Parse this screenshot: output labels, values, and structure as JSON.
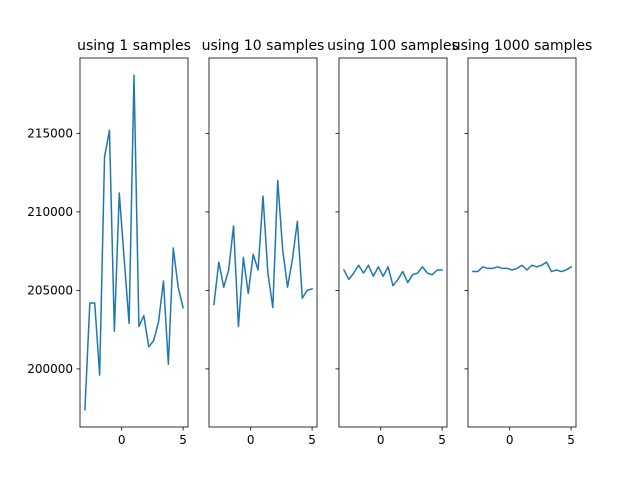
{
  "chart_data": [
    {
      "type": "line",
      "title": "using 1 samples",
      "xlim": [
        -3.4,
        5.4
      ],
      "ylim": [
        196300,
        219800
      ],
      "xticks": [
        "0",
        "5"
      ],
      "yticks": [
        "200000",
        "205000",
        "210000",
        "215000"
      ],
      "show_yticklabels": true,
      "line_color": "#1f77b4",
      "x": [
        -3.0,
        -2.6,
        -2.2,
        -1.8,
        -1.4,
        -1.0,
        -0.6,
        -0.2,
        0.2,
        0.6,
        1.0,
        1.4,
        1.8,
        2.2,
        2.6,
        3.0,
        3.4,
        3.8,
        4.2,
        4.6,
        5.0
      ],
      "values": [
        197400,
        204200,
        204200,
        199600,
        213500,
        215200,
        202400,
        211200,
        207000,
        202900,
        218700,
        202700,
        203400,
        201400,
        201800,
        203000,
        205600,
        200300,
        207700,
        205200,
        203900
      ]
    },
    {
      "type": "line",
      "title": "using 10 samples",
      "xlim": [
        -3.4,
        5.4
      ],
      "ylim": [
        196300,
        219800
      ],
      "xticks": [
        "0",
        "5"
      ],
      "yticks": [
        "200000",
        "205000",
        "210000",
        "215000"
      ],
      "show_yticklabels": false,
      "line_color": "#1f77b4",
      "x": [
        -3.0,
        -2.6,
        -2.2,
        -1.8,
        -1.4,
        -1.0,
        -0.6,
        -0.2,
        0.2,
        0.6,
        1.0,
        1.4,
        1.8,
        2.2,
        2.6,
        3.0,
        3.4,
        3.8,
        4.2,
        4.6,
        5.0
      ],
      "values": [
        204100,
        206800,
        205200,
        206300,
        209100,
        202700,
        207100,
        204800,
        207300,
        206300,
        211000,
        206100,
        203900,
        212000,
        207600,
        205200,
        207000,
        209400,
        204500,
        205000,
        205100
      ]
    },
    {
      "type": "line",
      "title": "using 100 samples",
      "xlim": [
        -3.4,
        5.4
      ],
      "ylim": [
        196300,
        219800
      ],
      "xticks": [
        "0",
        "5"
      ],
      "yticks": [
        "200000",
        "205000",
        "210000",
        "215000"
      ],
      "show_yticklabels": false,
      "line_color": "#1f77b4",
      "x": [
        -3.0,
        -2.6,
        -2.2,
        -1.8,
        -1.4,
        -1.0,
        -0.6,
        -0.2,
        0.2,
        0.6,
        1.0,
        1.4,
        1.8,
        2.2,
        2.6,
        3.0,
        3.4,
        3.8,
        4.2,
        4.6,
        5.0
      ],
      "values": [
        206300,
        205700,
        206100,
        206600,
        206100,
        206600,
        205900,
        206500,
        205900,
        206500,
        205300,
        205700,
        206200,
        205500,
        206000,
        206100,
        206500,
        206100,
        206000,
        206300,
        206300
      ]
    },
    {
      "type": "line",
      "title": "using 1000 samples",
      "xlim": [
        -3.4,
        5.4
      ],
      "ylim": [
        196300,
        219800
      ],
      "xticks": [
        "0",
        "5"
      ],
      "yticks": [
        "200000",
        "205000",
        "210000",
        "215000"
      ],
      "show_yticklabels": false,
      "line_color": "#1f77b4",
      "x": [
        -3.0,
        -2.6,
        -2.2,
        -1.8,
        -1.4,
        -1.0,
        -0.6,
        -0.2,
        0.2,
        0.6,
        1.0,
        1.4,
        1.8,
        2.2,
        2.6,
        3.0,
        3.4,
        3.8,
        4.2,
        4.6,
        5.0
      ],
      "values": [
        206200,
        206200,
        206500,
        206400,
        206400,
        206500,
        206400,
        206400,
        206300,
        206400,
        206600,
        206300,
        206600,
        206500,
        206600,
        206800,
        206200,
        206300,
        206200,
        206300,
        206500
      ]
    }
  ]
}
